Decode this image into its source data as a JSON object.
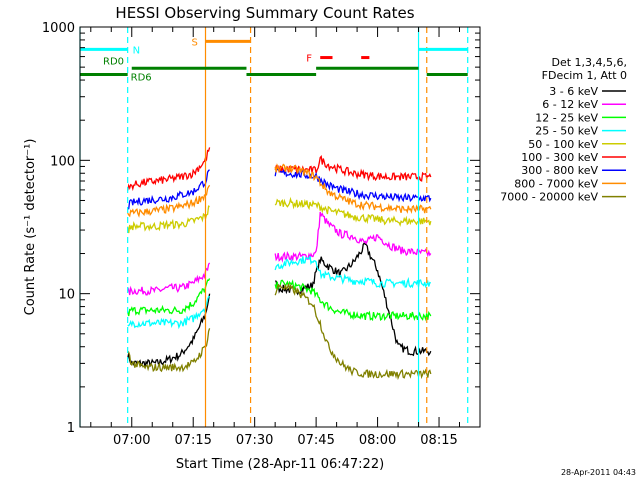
{
  "chart_data": {
    "type": "line",
    "title": "HESSI Observing Summary Count Rates",
    "xlabel": "Start Time (28-Apr-11 06:47:22)",
    "ylabel": "Count Rate (s⁻¹ detector⁻¹)",
    "yscale": "log",
    "ylim": [
      1,
      1000
    ],
    "xlim": [
      "06:47:22",
      "08:25:00"
    ],
    "x_ticks": [
      "07:00",
      "07:15",
      "07:30",
      "07:45",
      "08:00",
      "08:15"
    ],
    "y_ticks": [
      "1",
      "10",
      "100",
      "1000"
    ],
    "timestamp": "28-Apr-2011 04:43",
    "legend_header": [
      "Det 1,3,4,5,6,",
      "FDecim 1, Att 0"
    ],
    "legend_position": "right",
    "series": [
      {
        "name": "3 - 6 keV",
        "color": "#000000",
        "segments": [
          {
            "x": [
              "06:59",
              "07:00",
              "07:03",
              "07:06",
              "07:09",
              "07:12",
              "07:15",
              "07:18",
              "07:19"
            ],
            "y": [
              3.5,
              3.0,
              3.0,
              3.0,
              3.2,
              3.5,
              4.5,
              7,
              10
            ]
          },
          {
            "x": [
              "07:35",
              "07:36",
              "07:40",
              "07:44",
              "07:46",
              "07:48",
              "07:51",
              "07:54",
              "07:57",
              "08:00",
              "08:02",
              "08:05",
              "08:08",
              "08:11",
              "08:13"
            ],
            "y": [
              12,
              11,
              10.5,
              11.5,
              18,
              16,
              14,
              17,
              23,
              15,
              9,
              4,
              3.7,
              3.7,
              3.7
            ]
          }
        ]
      },
      {
        "name": "6 - 12 keV",
        "color": "#ff00ff",
        "segments": [
          {
            "x": [
              "06:59",
              "07:00",
              "07:03",
              "07:06",
              "07:09",
              "07:12",
              "07:15",
              "07:18",
              "07:19"
            ],
            "y": [
              10,
              10.5,
              10.5,
              10.5,
              11,
              11,
              12,
              14,
              17
            ]
          },
          {
            "x": [
              "07:35",
              "07:38",
              "07:42",
              "07:45",
              "07:46",
              "07:48",
              "07:51",
              "07:54",
              "07:57",
              "08:00",
              "08:03",
              "08:06",
              "08:09",
              "08:12",
              "08:13"
            ],
            "y": [
              19,
              19,
              19,
              20,
              40,
              33,
              28,
              27,
              24,
              27,
              23,
              21,
              20.5,
              20,
              20
            ]
          }
        ]
      },
      {
        "name": "12 - 25 keV",
        "color": "#00ff00",
        "segments": [
          {
            "x": [
              "06:59",
              "07:00",
              "07:03",
              "07:06",
              "07:09",
              "07:12",
              "07:15",
              "07:18",
              "07:19"
            ],
            "y": [
              7.0,
              7.5,
              7.5,
              7.5,
              7.5,
              7.5,
              8.5,
              11,
              13
            ]
          },
          {
            "x": [
              "07:35",
              "07:36",
              "07:40",
              "07:44",
              "07:46",
              "07:48",
              "07:51",
              "07:54",
              "07:57",
              "08:00",
              "08:03",
              "08:06",
              "08:09",
              "08:12",
              "08:13"
            ],
            "y": [
              11,
              12,
              11.5,
              10.5,
              9,
              8,
              7.2,
              7.0,
              6.8,
              6.8,
              6.8,
              6.8,
              6.8,
              6.8,
              6.8
            ]
          }
        ]
      },
      {
        "name": "25 - 50 keV",
        "color": "#00ffff",
        "segments": [
          {
            "x": [
              "06:59",
              "07:00",
              "07:03",
              "07:06",
              "07:09",
              "07:12",
              "07:15",
              "07:18",
              "07:19"
            ],
            "y": [
              5.5,
              6,
              6,
              6,
              6,
              6,
              6.5,
              8,
              9.5
            ]
          },
          {
            "x": [
              "07:35",
              "07:38",
              "07:42",
              "07:45",
              "07:46",
              "07:48",
              "07:51",
              "07:54",
              "07:57",
              "08:00",
              "08:03",
              "08:06",
              "08:09",
              "08:12",
              "08:13"
            ],
            "y": [
              16,
              17,
              18,
              18,
              14,
              13.5,
              13,
              12.5,
              12.5,
              12,
              12,
              12,
              12,
              12,
              12
            ]
          }
        ]
      },
      {
        "name": "50 - 100 keV",
        "color": "#cccc00",
        "segments": [
          {
            "x": [
              "06:59",
              "07:00",
              "07:03",
              "07:06",
              "07:09",
              "07:12",
              "07:15",
              "07:18",
              "07:19"
            ],
            "y": [
              30,
              32,
              32,
              32,
              33,
              33,
              35,
              38,
              45
            ]
          },
          {
            "x": [
              "07:35",
              "07:38",
              "07:42",
              "07:45",
              "07:46",
              "07:48",
              "07:51",
              "07:54",
              "07:57",
              "08:00",
              "08:03",
              "08:06",
              "08:09",
              "08:12",
              "08:13"
            ],
            "y": [
              48,
              48,
              47,
              46,
              45,
              42,
              40,
              38,
              37,
              36,
              35,
              35,
              35,
              35,
              35
            ]
          }
        ]
      },
      {
        "name": "100 - 300 keV",
        "color": "#ff0000",
        "segments": [
          {
            "x": [
              "06:59",
              "07:00",
              "07:03",
              "07:06",
              "07:09",
              "07:12",
              "07:15",
              "07:18",
              "07:19"
            ],
            "y": [
              60,
              65,
              68,
              70,
              72,
              75,
              80,
              100,
              125
            ]
          },
          {
            "x": [
              "07:35",
              "07:38",
              "07:42",
              "07:45",
              "07:46",
              "07:48",
              "07:51",
              "07:54",
              "07:57",
              "08:00",
              "08:03",
              "08:06",
              "08:09",
              "08:12",
              "08:13"
            ],
            "y": [
              85,
              86,
              85,
              84,
              102,
              92,
              85,
              80,
              78,
              76,
              75,
              75,
              75,
              75,
              75
            ]
          }
        ]
      },
      {
        "name": "300 - 800 keV",
        "color": "#0000ff",
        "segments": [
          {
            "x": [
              "06:59",
              "07:00",
              "07:03",
              "07:06",
              "07:09",
              "07:12",
              "07:15",
              "07:18",
              "07:19"
            ],
            "y": [
              45,
              48,
              50,
              51,
              52,
              55,
              58,
              70,
              85
            ]
          },
          {
            "x": [
              "07:35",
              "07:38",
              "07:42",
              "07:45",
              "07:46",
              "07:48",
              "07:51",
              "07:54",
              "07:57",
              "08:00",
              "08:03",
              "08:06",
              "08:09",
              "08:12",
              "08:13"
            ],
            "y": [
              80,
              80,
              78,
              76,
              72,
              65,
              60,
              57,
              55,
              54,
              53,
              52,
              52,
              52,
              52
            ]
          }
        ]
      },
      {
        "name": "800 - 7000 keV",
        "color": "#ff8c00",
        "segments": [
          {
            "x": [
              "06:59",
              "07:00",
              "07:03",
              "07:06",
              "07:09",
              "07:12",
              "07:15",
              "07:18",
              "07:19"
            ],
            "y": [
              40,
              40,
              41,
              42,
              43,
              45,
              48,
              55,
              65
            ]
          },
          {
            "x": [
              "07:35",
              "07:38",
              "07:42",
              "07:45",
              "07:46",
              "07:48",
              "07:51",
              "07:54",
              "07:57",
              "08:00",
              "08:03",
              "08:06",
              "08:09",
              "08:12",
              "08:13"
            ],
            "y": [
              85,
              88,
              82,
              75,
              68,
              58,
              52,
              48,
              46,
              45,
              44,
              43,
              43,
              43,
              43
            ]
          }
        ]
      },
      {
        "name": "7000 - 20000 keV",
        "color": "#808000",
        "segments": [
          {
            "x": [
              "06:59",
              "07:00",
              "07:03",
              "07:06",
              "07:09",
              "07:12",
              "07:15",
              "07:18",
              "07:19"
            ],
            "y": [
              3.8,
              3.0,
              2.8,
              2.8,
              2.8,
              2.8,
              3.0,
              4.0,
              5.5
            ]
          },
          {
            "x": [
              "07:35",
              "07:36",
              "07:40",
              "07:44",
              "07:46",
              "07:48",
              "07:51",
              "07:54",
              "07:57",
              "08:00",
              "08:03",
              "08:06",
              "08:09",
              "08:12",
              "08:13"
            ],
            "y": [
              10,
              11.5,
              10.5,
              8.5,
              6,
              4,
              3,
              2.6,
              2.5,
              2.5,
              2.5,
              2.5,
              2.5,
              2.5,
              2.5
            ]
          }
        ]
      }
    ],
    "flags": [
      {
        "label": "N",
        "color": "#00ffff",
        "y": 680,
        "segments": [
          [
            "06:47:22",
            "06:59"
          ],
          [
            "08:10",
            "08:22"
          ]
        ]
      },
      {
        "label": "S",
        "color": "#ff8c00",
        "y": 780,
        "segments": [
          [
            "07:18",
            "07:29"
          ]
        ]
      },
      {
        "label": "F",
        "color": "#ff0000",
        "y": 590,
        "segments": [
          [
            "07:46",
            "07:49"
          ],
          [
            "07:56",
            "07:58"
          ]
        ]
      },
      {
        "label": "RD0",
        "color": "#008000",
        "y": 490,
        "segments": [
          [
            "07:00",
            "07:28"
          ],
          [
            "07:45",
            "08:10"
          ]
        ]
      },
      {
        "label": "RD6",
        "color": "#008000",
        "y": 440,
        "segments": [
          [
            "06:47:22",
            "06:59"
          ],
          [
            "07:28",
            "07:45"
          ],
          [
            "08:12",
            "08:22"
          ]
        ]
      }
    ],
    "markers": [
      {
        "x": "06:47:22",
        "color": "#00ffff",
        "style": "solid"
      },
      {
        "x": "06:59",
        "color": "#00ffff",
        "style": "dashed"
      },
      {
        "x": "07:18",
        "color": "#ff8c00",
        "style": "solid"
      },
      {
        "x": "07:29",
        "color": "#ff8c00",
        "style": "dashed"
      },
      {
        "x": "08:10",
        "color": "#00ffff",
        "style": "solid"
      },
      {
        "x": "08:12",
        "color": "#ff8c00",
        "style": "dashed"
      },
      {
        "x": "08:22",
        "color": "#00ffff",
        "style": "dashed"
      }
    ]
  }
}
